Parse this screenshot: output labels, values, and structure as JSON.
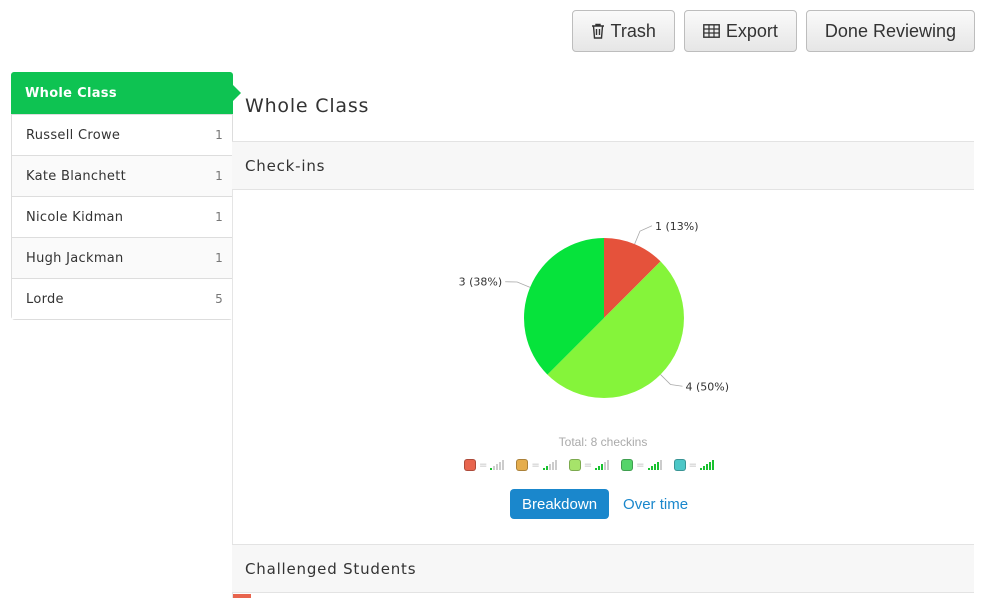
{
  "toolbar": {
    "trash_label": "Trash",
    "export_label": "Export",
    "done_label": "Done Reviewing"
  },
  "sidebar": {
    "items": [
      {
        "label": "Whole Class",
        "count": ""
      },
      {
        "label": "Russell Crowe",
        "count": "1"
      },
      {
        "label": "Kate Blanchett",
        "count": "1"
      },
      {
        "label": "Nicole Kidman",
        "count": "1"
      },
      {
        "label": "Hugh Jackman",
        "count": "1"
      },
      {
        "label": "Lorde",
        "count": "5"
      }
    ]
  },
  "main": {
    "title": "Whole Class",
    "checkins_header": "Check-ins",
    "total_text": "Total: 8 checkins",
    "challenged_header": "Challenged Students",
    "tabs": {
      "breakdown": "Breakdown",
      "over_time": "Over time"
    }
  },
  "legend": [
    {
      "color": "#e8654e",
      "level": 1
    },
    {
      "color": "#e5ad4d",
      "level": 2
    },
    {
      "color": "#a6e36a",
      "level": 3
    },
    {
      "color": "#55d46a",
      "level": 4
    },
    {
      "color": "#4cc7c7",
      "level": 5
    }
  ],
  "colors": {
    "active": "#0ec352",
    "link": "#1a87cc",
    "signal_on": "#19c230"
  },
  "chart_data": {
    "type": "pie",
    "slices": [
      {
        "value": 1,
        "label": "1 (13%)",
        "color": "#e5523b"
      },
      {
        "value": 4,
        "label": "4 (50%)",
        "color": "#85f43a"
      },
      {
        "value": 3,
        "label": "3 (38%)",
        "color": "#06e33b"
      }
    ]
  }
}
